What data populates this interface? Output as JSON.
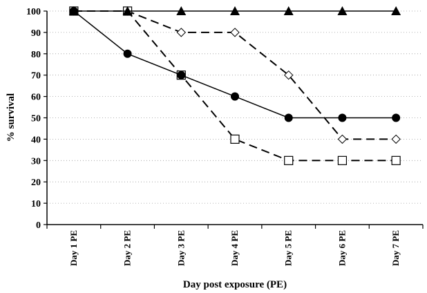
{
  "chart_data": {
    "type": "line",
    "xlabel": "Day post exposure (PE)",
    "ylabel": "% survival",
    "ylim": [
      0,
      100
    ],
    "yticks": [
      "0",
      "10",
      "20",
      "30",
      "40",
      "50",
      "60",
      "70",
      "80",
      "90",
      "100"
    ],
    "categories": [
      "Day 1 PE",
      "Day 2 PE",
      "Day 3 PE",
      "Day 4 PE",
      "Day 5 PE",
      "Day 6 PE",
      "Day 7 PE"
    ],
    "grid": "horizontal dotted",
    "series": [
      {
        "marker": "triangle-filled",
        "line": "solid",
        "values": [
          100,
          100,
          100,
          100,
          100,
          100,
          100
        ]
      },
      {
        "marker": "circle-filled",
        "line": "solid",
        "values": [
          100,
          80,
          70,
          60,
          50,
          50,
          50
        ]
      },
      {
        "marker": "diamond-open",
        "line": "dashed",
        "values": [
          100,
          100,
          90,
          90,
          70,
          40,
          40
        ]
      },
      {
        "marker": "square-open",
        "line": "dashed",
        "values": [
          100,
          100,
          70,
          40,
          30,
          30,
          30
        ]
      }
    ]
  }
}
